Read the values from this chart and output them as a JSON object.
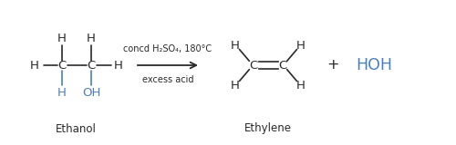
{
  "bg_color": "#ffffff",
  "black": "#2a2a2a",
  "blue": "#4a7fbd",
  "arrow_text_top": "concd H₂SO₄, 180°C",
  "arrow_text_bot": "excess acid",
  "label_ethanol": "Ethanol",
  "label_ethylene": "Ethylene",
  "figsize": [
    5.0,
    1.6
  ],
  "dpi": 100
}
